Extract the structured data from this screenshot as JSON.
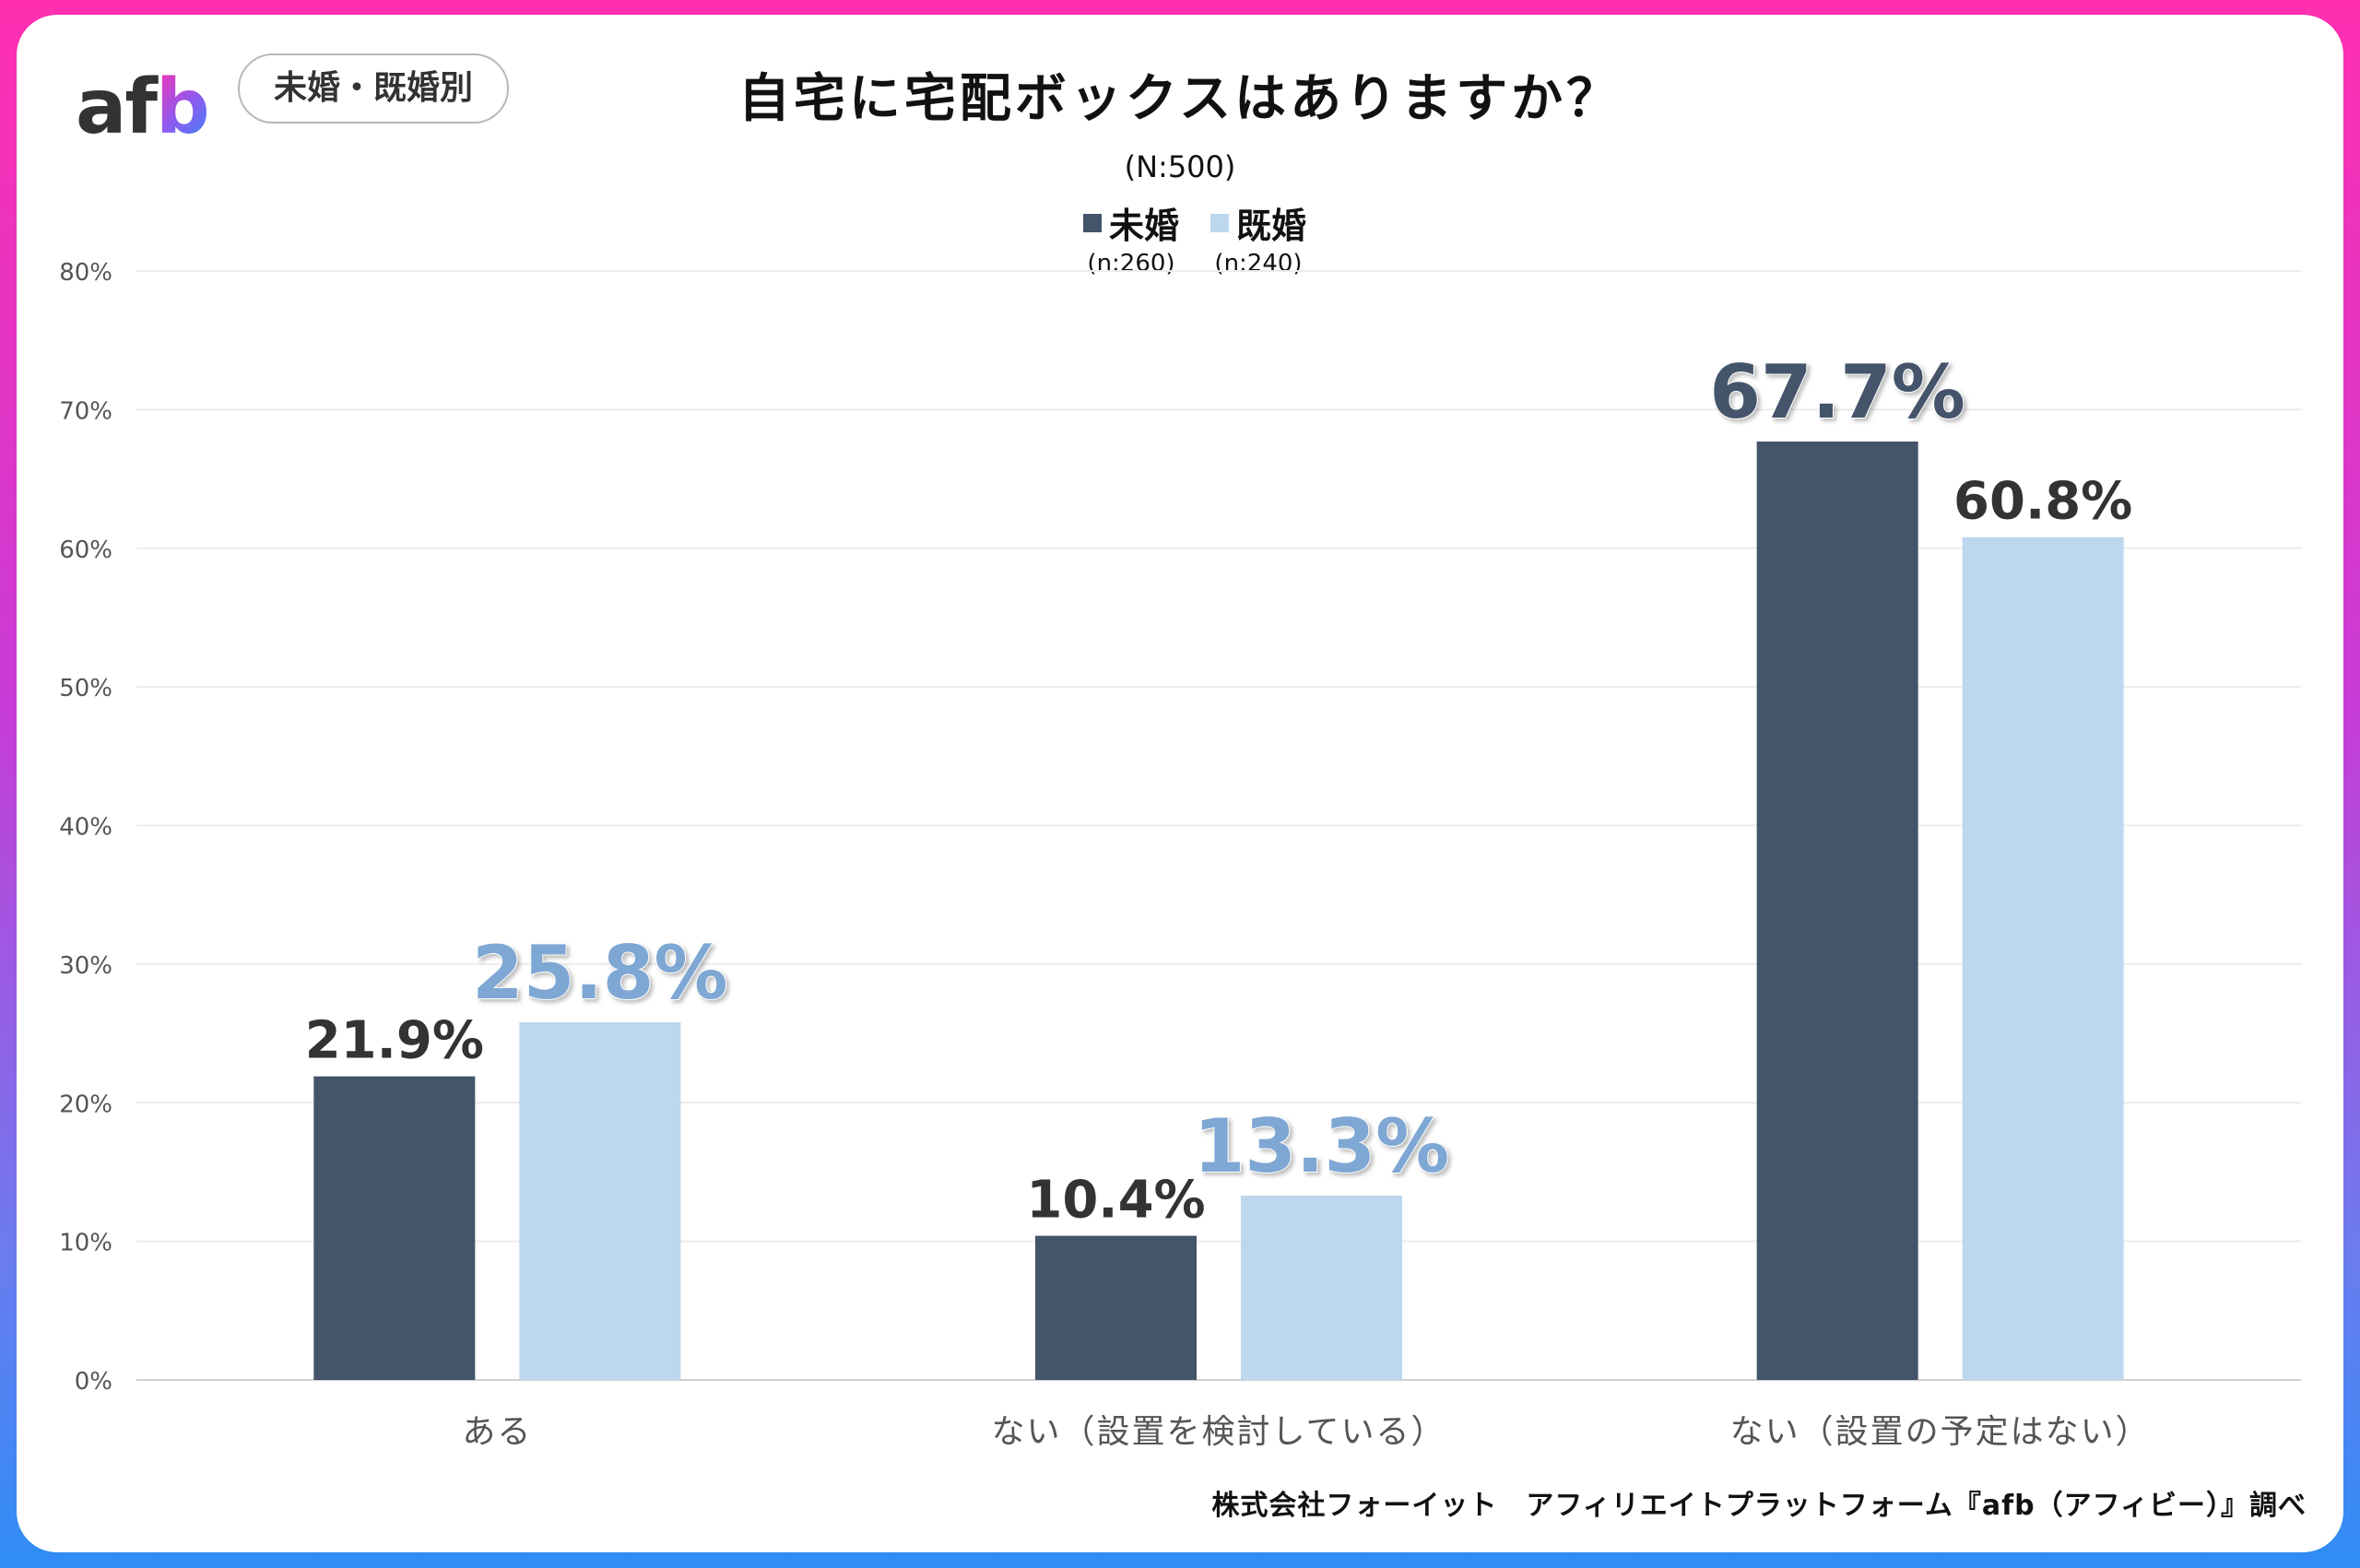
{
  "logo": {
    "a": "a",
    "f": "f",
    "b": "b"
  },
  "badge": "未婚・既婚別",
  "title": "自宅に宅配ボックスはありますか？",
  "subtitle": "(N:500)",
  "legend": [
    {
      "label": "未婚",
      "n": "(n:260)",
      "color": "#44546a"
    },
    {
      "label": "既婚",
      "n": "(n:240)",
      "color": "#bdd7ee"
    }
  ],
  "footer": "株式会社フォーイット　アフィリエイトプラットフォーム『afb（アフィビー）』調べ",
  "chart_data": {
    "type": "bar",
    "title": "自宅に宅配ボックスはありますか？",
    "categories": [
      "ある",
      "ない（設置を検討している）",
      "ない（設置の予定はない）"
    ],
    "series": [
      {
        "name": "未婚",
        "values": [
          21.9,
          10.4,
          67.7
        ],
        "labels": [
          "21.9%",
          "10.4%",
          "67.7%"
        ]
      },
      {
        "name": "既婚",
        "values": [
          25.8,
          13.3,
          60.8
        ],
        "labels": [
          "25.8%",
          "13.3%",
          "60.8%"
        ]
      }
    ],
    "ylim": [
      0,
      80
    ],
    "yticks": [
      "0%",
      "10%",
      "20%",
      "30%",
      "40%",
      "50%",
      "60%",
      "70%",
      "80%"
    ],
    "grid": true,
    "legend_position": "top-center",
    "colors": {
      "series1": "#44546a",
      "series2": "#bdd7ee",
      "highlight": "#7fa7d3",
      "label": "#333333"
    }
  }
}
